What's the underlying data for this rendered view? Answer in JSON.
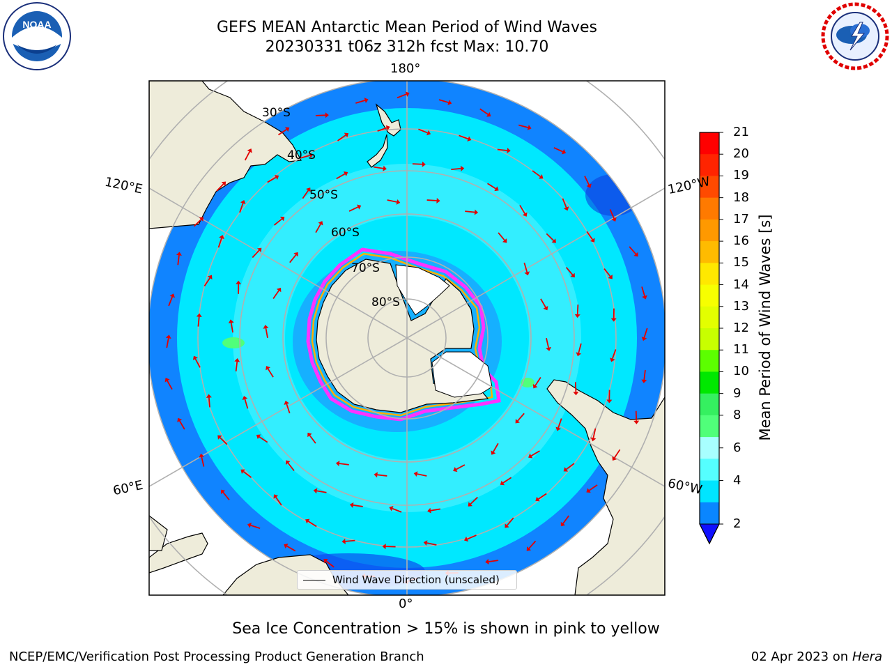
{
  "header": {
    "title_line1": "GEFS MEAN Antarctic Mean Period of Wind Waves",
    "title_line2": "20230331 t06z 312h fcst   Max: 10.70"
  },
  "logos": {
    "noaa_text": "NOAA",
    "noaa_ring_text": "NATIONAL OCEANIC AND ATMOSPHERIC ADMINISTRATION",
    "noaa_ring_bottom": "U.S. DEPARTMENT OF COMMERCE",
    "nws_ring_text": "NATIONAL WEATHER SERVICE"
  },
  "map": {
    "projection": "south-polar-stereographic",
    "longitude_labels": {
      "top": "180°",
      "bottom": "0°",
      "upper_left": "120°E",
      "upper_right": "120°W",
      "lower_left": "60°E",
      "lower_right": "60°W"
    },
    "latitude_labels": [
      "30°S",
      "40°S",
      "50°S",
      "60°S",
      "70°S",
      "80°S"
    ],
    "colors": {
      "land": "#eeecda",
      "ocean_light": "#55f4ff",
      "ocean_cyan": "#00e9ff",
      "ocean_blue": "#0a86ff",
      "ice_edge_pink": "#ff33ff",
      "ice_edge_yellow": "#ffb000",
      "arrow": "#e30000",
      "grid": "#b0b0b0"
    }
  },
  "legend": {
    "label": "Wind Wave Direction (unscaled)"
  },
  "colorbar": {
    "label": "Mean Period of Wind Waves [s]",
    "ticks": [
      "21",
      "20",
      "19",
      "18",
      "17",
      "16",
      "15",
      "14",
      "13",
      "12",
      "11",
      "10",
      "9",
      "8",
      "6",
      "4",
      "2"
    ],
    "colors_top_to_bottom": [
      "#ff0000",
      "#ff2400",
      "#ff4a00",
      "#ff7a00",
      "#ff9900",
      "#ffbb00",
      "#ffe800",
      "#f7ff00",
      "#e3ff00",
      "#c8ff00",
      "#5cff00",
      "#00e800",
      "#35f060",
      "#50ff7a",
      "#a8ffff",
      "#55ffff",
      "#00e5ff",
      "#0a86ff"
    ],
    "under_color": "#1010ff"
  },
  "footer": {
    "ice_note": "Sea Ice Concentration > 15% is shown in pink to yellow",
    "left": "NCEP/EMC/Verification Post Processing Product Generation Branch",
    "date": "02 Apr 2023 on",
    "machine": "Hera"
  }
}
